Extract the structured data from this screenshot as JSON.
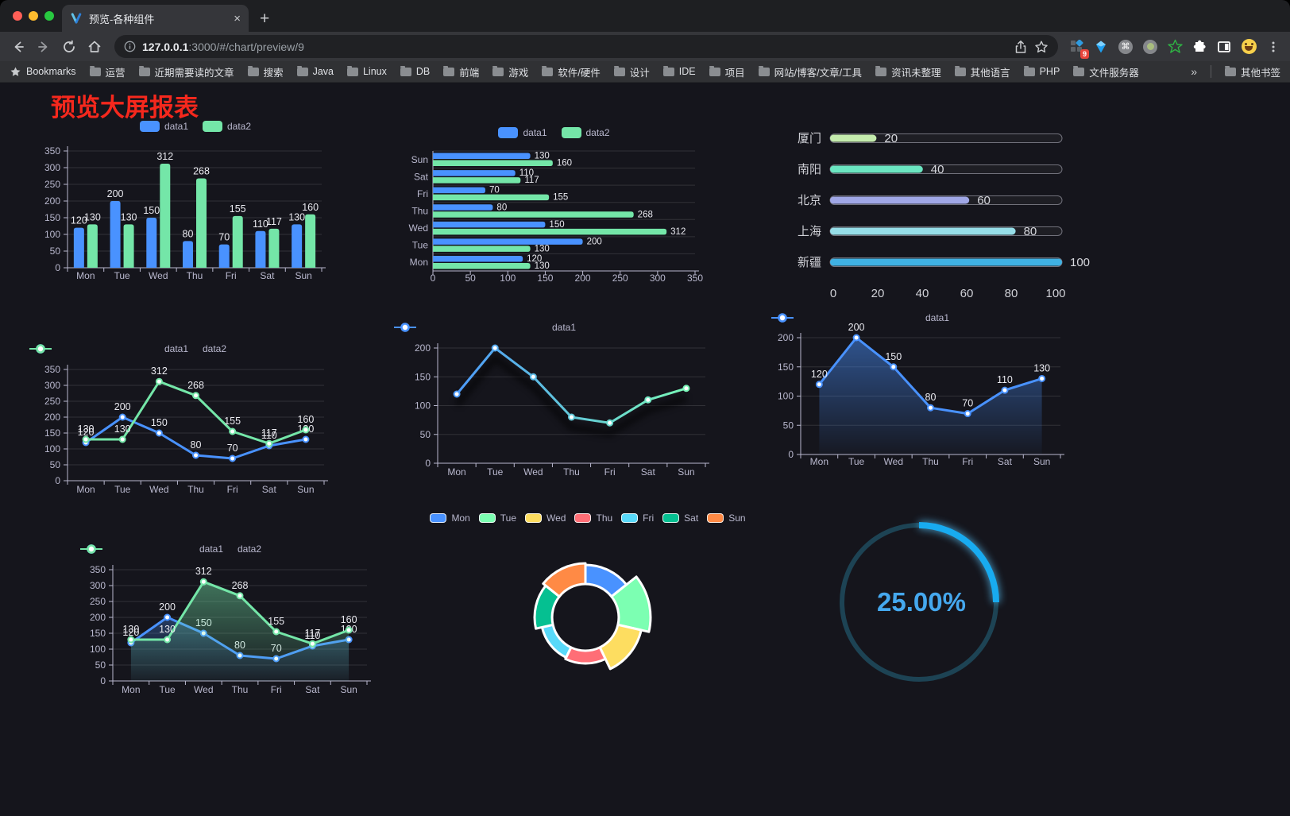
{
  "browser": {
    "tab_title": "预览-各种组件",
    "close_tab_icon": "×",
    "new_tab_icon": "+",
    "url_host": "127.0.0.1",
    "url_path": ":3000/#/chart/preview/9",
    "bookmarks_label": "Bookmarks",
    "bookmark_folders": [
      "运营",
      "近期需要读的文章",
      "搜索",
      "Java",
      "Linux",
      "DB",
      "前端",
      "游戏",
      "软件/硬件",
      "设计",
      "IDE",
      "项目",
      "网站/博客/文章/工具",
      "资讯未整理",
      "其他语言",
      "PHP",
      "文件服务器"
    ],
    "overflow_chevron": "»",
    "other_bookmarks_label": "其他书签",
    "extension_badge_count": "9",
    "cmd_symbol": "⌘"
  },
  "page": {
    "title": "预览大屏报表",
    "title_color": "#f5281d",
    "background": "#15151c"
  },
  "chart_data": [
    {
      "id": "bar-vertical",
      "type": "bar",
      "categories": [
        "Mon",
        "Tue",
        "Wed",
        "Thu",
        "Fri",
        "Sat",
        "Sun"
      ],
      "series": [
        {
          "name": "data1",
          "color": "#4992ff",
          "values": [
            120,
            200,
            150,
            80,
            70,
            110,
            130
          ]
        },
        {
          "name": "data2",
          "color": "#74e6a8",
          "values": [
            130,
            130,
            312,
            268,
            155,
            117,
            160
          ]
        }
      ],
      "legend": [
        "data1",
        "data2"
      ],
      "ylim": [
        0,
        350
      ],
      "ytick_step": 50,
      "value_labels": true
    },
    {
      "id": "bar-horizontal",
      "type": "bar-horizontal",
      "categories": [
        "Mon",
        "Tue",
        "Wed",
        "Thu",
        "Fri",
        "Sat",
        "Sun"
      ],
      "display_order": "Sun at top, Mon at bottom",
      "series": [
        {
          "name": "data1",
          "color": "#4992ff",
          "values": [
            120,
            200,
            150,
            80,
            70,
            110,
            130
          ]
        },
        {
          "name": "data2",
          "color": "#74e6a8",
          "values": [
            130,
            130,
            312,
            268,
            155,
            117,
            160
          ]
        }
      ],
      "legend": [
        "data1",
        "data2"
      ],
      "xlim": [
        0,
        350
      ],
      "xtick_step": 50,
      "value_labels": true
    },
    {
      "id": "progress",
      "type": "progress-bars",
      "items": [
        {
          "label": "厦门",
          "value": 20,
          "color": "#c4ebad"
        },
        {
          "label": "南阳",
          "value": 40,
          "color": "#6be6c1"
        },
        {
          "label": "北京",
          "value": 60,
          "color": "#a0a7e6"
        },
        {
          "label": "上海",
          "value": 80,
          "color": "#96dee8"
        },
        {
          "label": "新疆",
          "value": 100,
          "color": "#3fb1e3"
        }
      ],
      "xlim": [
        0,
        100
      ],
      "xticks": [
        0,
        20,
        40,
        60,
        80,
        100
      ]
    },
    {
      "id": "line-two",
      "type": "line",
      "categories": [
        "Mon",
        "Tue",
        "Wed",
        "Thu",
        "Fri",
        "Sat",
        "Sun"
      ],
      "series": [
        {
          "name": "data1",
          "color": "#4992ff",
          "values": [
            120,
            200,
            150,
            80,
            70,
            110,
            130
          ]
        },
        {
          "name": "data2",
          "color": "#74e6a8",
          "values": [
            130,
            130,
            312,
            268,
            155,
            117,
            160
          ]
        }
      ],
      "legend": [
        "data1",
        "data2"
      ],
      "ylim": [
        0,
        350
      ],
      "ytick_step": 50,
      "value_labels": true
    },
    {
      "id": "line-gradient",
      "type": "line",
      "categories": [
        "Mon",
        "Tue",
        "Wed",
        "Thu",
        "Fri",
        "Sat",
        "Sun"
      ],
      "series": [
        {
          "name": "data1",
          "gradient": [
            "#4992ff",
            "#7cffb2"
          ],
          "values": [
            120,
            200,
            150,
            80,
            70,
            110,
            130
          ]
        }
      ],
      "legend": [
        "data1"
      ],
      "ylim": [
        0,
        200
      ],
      "ytick_step": 50,
      "value_labels": false,
      "shadow": true
    },
    {
      "id": "line-area",
      "type": "line",
      "categories": [
        "Mon",
        "Tue",
        "Wed",
        "Thu",
        "Fri",
        "Sat",
        "Sun"
      ],
      "series": [
        {
          "name": "data1",
          "color": "#4992ff",
          "area": true,
          "values": [
            120,
            200,
            150,
            80,
            70,
            110,
            130
          ]
        }
      ],
      "legend": [
        "data1"
      ],
      "ylim": [
        0,
        200
      ],
      "ytick_step": 50,
      "value_labels": true
    },
    {
      "id": "line-two-area",
      "type": "line",
      "categories": [
        "Mon",
        "Tue",
        "Wed",
        "Thu",
        "Fri",
        "Sat",
        "Sun"
      ],
      "series": [
        {
          "name": "data1",
          "color": "#4992ff",
          "area": true,
          "values": [
            120,
            200,
            150,
            80,
            70,
            110,
            130
          ]
        },
        {
          "name": "data2",
          "color": "#74e6a8",
          "area": true,
          "values": [
            130,
            130,
            312,
            268,
            155,
            117,
            160
          ]
        }
      ],
      "legend": [
        "data1",
        "data2"
      ],
      "ylim": [
        0,
        350
      ],
      "ytick_step": 50,
      "value_labels": true
    },
    {
      "id": "rose-pie",
      "type": "pie",
      "rose": true,
      "categories": [
        "Mon",
        "Tue",
        "Wed",
        "Thu",
        "Fri",
        "Sat",
        "Sun"
      ],
      "values": [
        120,
        200,
        150,
        80,
        70,
        110,
        130
      ],
      "colors": [
        "#4992ff",
        "#7cffb2",
        "#fddd60",
        "#ff6e76",
        "#58d9f9",
        "#05c091",
        "#ff8a45"
      ],
      "legend": [
        "Mon",
        "Tue",
        "Wed",
        "Thu",
        "Fri",
        "Sat",
        "Sun"
      ]
    },
    {
      "id": "gauge",
      "type": "gauge",
      "value": 25,
      "max": 100,
      "label": "25.00%",
      "color": "#18abf0",
      "track_color": "#1d4354",
      "label_color": "#45a8ee"
    }
  ]
}
